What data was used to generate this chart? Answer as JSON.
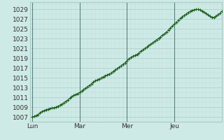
{
  "bg_color": "#ceeae6",
  "grid_major_color": "#a8ccc8",
  "grid_minor_color": "#bdddd9",
  "line_color": "#1a5c1a",
  "marker_color": "#1a5c1a",
  "yticks": [
    1007,
    1009,
    1011,
    1013,
    1015,
    1017,
    1019,
    1021,
    1023,
    1025,
    1027,
    1029
  ],
  "ylim": [
    1006.0,
    1030.5
  ],
  "xtick_labels": [
    "Lun",
    "Mar",
    "Mer",
    "Jeu"
  ],
  "xtick_positions": [
    0,
    24,
    48,
    72
  ],
  "xlim": [
    -1,
    96
  ],
  "vline_color": "#5a8080",
  "pressure_values": [
    1007.0,
    1007.1,
    1007.3,
    1007.5,
    1007.8,
    1008.1,
    1008.3,
    1008.5,
    1008.6,
    1008.7,
    1008.8,
    1008.9,
    1009.0,
    1009.2,
    1009.4,
    1009.6,
    1009.9,
    1010.2,
    1010.5,
    1010.8,
    1011.1,
    1011.4,
    1011.6,
    1011.8,
    1012.0,
    1012.3,
    1012.6,
    1012.9,
    1013.2,
    1013.5,
    1013.8,
    1014.1,
    1014.4,
    1014.6,
    1014.8,
    1015.0,
    1015.2,
    1015.4,
    1015.6,
    1015.8,
    1016.0,
    1016.3,
    1016.6,
    1016.9,
    1017.2,
    1017.5,
    1017.8,
    1018.1,
    1018.5,
    1018.9,
    1019.2,
    1019.4,
    1019.6,
    1019.8,
    1020.1,
    1020.4,
    1020.7,
    1021.0,
    1021.3,
    1021.6,
    1021.9,
    1022.2,
    1022.5,
    1022.8,
    1023.1,
    1023.4,
    1023.7,
    1024.0,
    1024.4,
    1024.8,
    1025.2,
    1025.6,
    1026.0,
    1026.4,
    1026.8,
    1027.2,
    1027.5,
    1027.8,
    1028.1,
    1028.4,
    1028.6,
    1028.8,
    1028.9,
    1029.0,
    1029.0,
    1028.9,
    1028.7,
    1028.5,
    1028.2,
    1027.9,
    1027.6,
    1027.4,
    1027.4,
    1027.6,
    1027.9,
    1028.2,
    1028.6
  ]
}
